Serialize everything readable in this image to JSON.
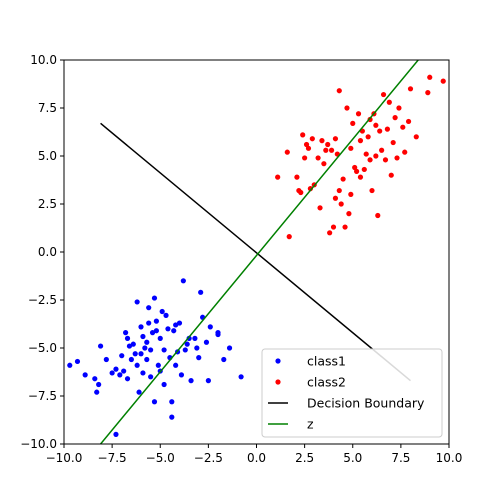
{
  "chart_data": {
    "type": "scatter",
    "xlim": [
      -10,
      10
    ],
    "ylim": [
      -10,
      10
    ],
    "grid": false,
    "legend_position": "lower-right",
    "xticks": [
      "−10.0",
      "−7.5",
      "−5.0",
      "−2.5",
      "0.0",
      "2.5",
      "5.0",
      "7.5",
      "10.0"
    ],
    "yticks": [
      "−10.0",
      "−7.5",
      "−5.0",
      "−2.5",
      "0.0",
      "2.5",
      "5.0",
      "7.5",
      "10.0"
    ],
    "tick_values": [
      -10,
      -7.5,
      -5,
      -2.5,
      0,
      2.5,
      5,
      7.5,
      10
    ],
    "series": [
      {
        "name": "class1",
        "kind": "points",
        "color": "#0000ff",
        "points": [
          [
            -9.7,
            -5.9
          ],
          [
            -9.3,
            -5.7
          ],
          [
            -8.9,
            -6.4
          ],
          [
            -8.4,
            -6.6
          ],
          [
            -8.3,
            -7.3
          ],
          [
            -8.2,
            -6.9
          ],
          [
            -8.1,
            -4.9
          ],
          [
            -7.8,
            -5.6
          ],
          [
            -7.5,
            -6.3
          ],
          [
            -7.3,
            -6.1
          ],
          [
            -7.3,
            -9.5
          ],
          [
            -7.1,
            -6.4
          ],
          [
            -7.0,
            -5.4
          ],
          [
            -6.9,
            -6.2
          ],
          [
            -6.8,
            -4.2
          ],
          [
            -6.7,
            -4.5
          ],
          [
            -6.6,
            -4.9
          ],
          [
            -6.5,
            -5.6
          ],
          [
            -6.4,
            -4.8
          ],
          [
            -6.3,
            -5.3
          ],
          [
            -6.2,
            -5.9
          ],
          [
            -6.2,
            -2.6
          ],
          [
            -6.1,
            -7.3
          ],
          [
            -6.0,
            -3.9
          ],
          [
            -5.9,
            -6.3
          ],
          [
            -5.9,
            -4.4
          ],
          [
            -5.8,
            -5.0
          ],
          [
            -5.7,
            -5.6
          ],
          [
            -5.7,
            -4.7
          ],
          [
            -5.6,
            -2.9
          ],
          [
            -5.5,
            -6.5
          ],
          [
            -5.5,
            -5.1
          ],
          [
            -5.4,
            -4.2
          ],
          [
            -5.3,
            -7.8
          ],
          [
            -5.3,
            -2.4
          ],
          [
            -5.2,
            -3.6
          ],
          [
            -5.1,
            -5.9
          ],
          [
            -5.0,
            -6.2
          ],
          [
            -5.0,
            -4.5
          ],
          [
            -4.9,
            -3.1
          ],
          [
            -4.8,
            -5.1
          ],
          [
            -4.8,
            -6.9
          ],
          [
            -4.7,
            -3.3
          ],
          [
            -4.6,
            -4.0
          ],
          [
            -4.5,
            -5.5
          ],
          [
            -4.4,
            -7.8
          ],
          [
            -4.4,
            -8.6
          ],
          [
            -4.3,
            -4.1
          ],
          [
            -4.2,
            -3.8
          ],
          [
            -4.1,
            -5.2
          ],
          [
            -4.0,
            -3.7
          ],
          [
            -3.9,
            -6.4
          ],
          [
            -3.8,
            -1.5
          ],
          [
            -3.7,
            -5.1
          ],
          [
            -3.6,
            -4.8
          ],
          [
            -3.5,
            -4.5
          ],
          [
            -3.4,
            -6.7
          ],
          [
            -3.2,
            -4.5
          ],
          [
            -3.1,
            -5.0
          ],
          [
            -3.0,
            -5.5
          ],
          [
            -2.9,
            -2.1
          ],
          [
            -2.8,
            -3.4
          ],
          [
            -2.6,
            -4.7
          ],
          [
            -2.5,
            -6.7
          ],
          [
            -2.4,
            -3.9
          ],
          [
            -2.0,
            -4.3
          ],
          [
            -2.0,
            -4.2
          ],
          [
            -1.7,
            -5.6
          ],
          [
            -1.4,
            -5.0
          ],
          [
            -0.8,
            -6.5
          ],
          [
            -6.7,
            -6.6
          ],
          [
            -6.0,
            -5.3
          ],
          [
            -5.6,
            -3.7
          ],
          [
            -4.2,
            -5.9
          ],
          [
            -5.2,
            -4.1
          ]
        ]
      },
      {
        "name": "class2",
        "kind": "points",
        "color": "#ff0000",
        "points": [
          [
            1.1,
            3.9
          ],
          [
            1.6,
            5.2
          ],
          [
            1.7,
            0.8
          ],
          [
            2.1,
            3.9
          ],
          [
            2.2,
            3.2
          ],
          [
            2.3,
            3.1
          ],
          [
            2.4,
            6.1
          ],
          [
            2.5,
            4.9
          ],
          [
            2.6,
            5.6
          ],
          [
            2.7,
            5.4
          ],
          [
            2.8,
            3.3
          ],
          [
            2.9,
            5.9
          ],
          [
            3.0,
            3.5
          ],
          [
            3.2,
            4.9
          ],
          [
            3.3,
            2.3
          ],
          [
            3.4,
            5.8
          ],
          [
            3.6,
            5.3
          ],
          [
            3.7,
            5.6
          ],
          [
            3.8,
            1.0
          ],
          [
            3.9,
            5.3
          ],
          [
            4.0,
            1.3
          ],
          [
            4.1,
            2.8
          ],
          [
            4.1,
            5.9
          ],
          [
            4.2,
            5.1
          ],
          [
            4.3,
            3.2
          ],
          [
            4.3,
            8.4
          ],
          [
            4.4,
            2.5
          ],
          [
            4.5,
            3.8
          ],
          [
            4.6,
            1.3
          ],
          [
            4.7,
            7.5
          ],
          [
            4.8,
            2.0
          ],
          [
            4.9,
            5.4
          ],
          [
            5.0,
            6.7
          ],
          [
            5.1,
            4.4
          ],
          [
            5.2,
            4.2
          ],
          [
            5.3,
            7.2
          ],
          [
            5.4,
            3.9
          ],
          [
            5.5,
            6.3
          ],
          [
            5.6,
            4.3
          ],
          [
            5.7,
            5.1
          ],
          [
            5.8,
            6.0
          ],
          [
            5.9,
            6.9
          ],
          [
            6.0,
            3.2
          ],
          [
            6.1,
            7.2
          ],
          [
            6.2,
            5.0
          ],
          [
            6.3,
            1.9
          ],
          [
            6.4,
            6.3
          ],
          [
            6.5,
            5.3
          ],
          [
            6.6,
            8.2
          ],
          [
            6.7,
            4.8
          ],
          [
            6.8,
            6.4
          ],
          [
            6.9,
            7.8
          ],
          [
            7.0,
            4.0
          ],
          [
            7.1,
            5.7
          ],
          [
            7.2,
            7.0
          ],
          [
            7.3,
            4.9
          ],
          [
            7.4,
            7.5
          ],
          [
            7.6,
            6.5
          ],
          [
            7.7,
            5.2
          ],
          [
            7.9,
            6.8
          ],
          [
            8.0,
            8.5
          ],
          [
            8.3,
            6.0
          ],
          [
            8.9,
            8.3
          ],
          [
            9.0,
            9.1
          ],
          [
            9.7,
            8.9
          ],
          [
            4.9,
            3.0
          ],
          [
            5.4,
            5.8
          ],
          [
            6.2,
            6.6
          ],
          [
            3.5,
            4.6
          ],
          [
            5.9,
            4.8
          ]
        ]
      },
      {
        "name": "Decision Boundary",
        "kind": "line",
        "color": "#000000",
        "points": [
          [
            -8.1,
            6.7
          ],
          [
            8.0,
            -6.7
          ]
        ]
      },
      {
        "name": "z",
        "kind": "line",
        "color": "#008000",
        "points": [
          [
            -8.1,
            -10.0
          ],
          [
            8.4,
            10.0
          ]
        ]
      }
    ]
  }
}
